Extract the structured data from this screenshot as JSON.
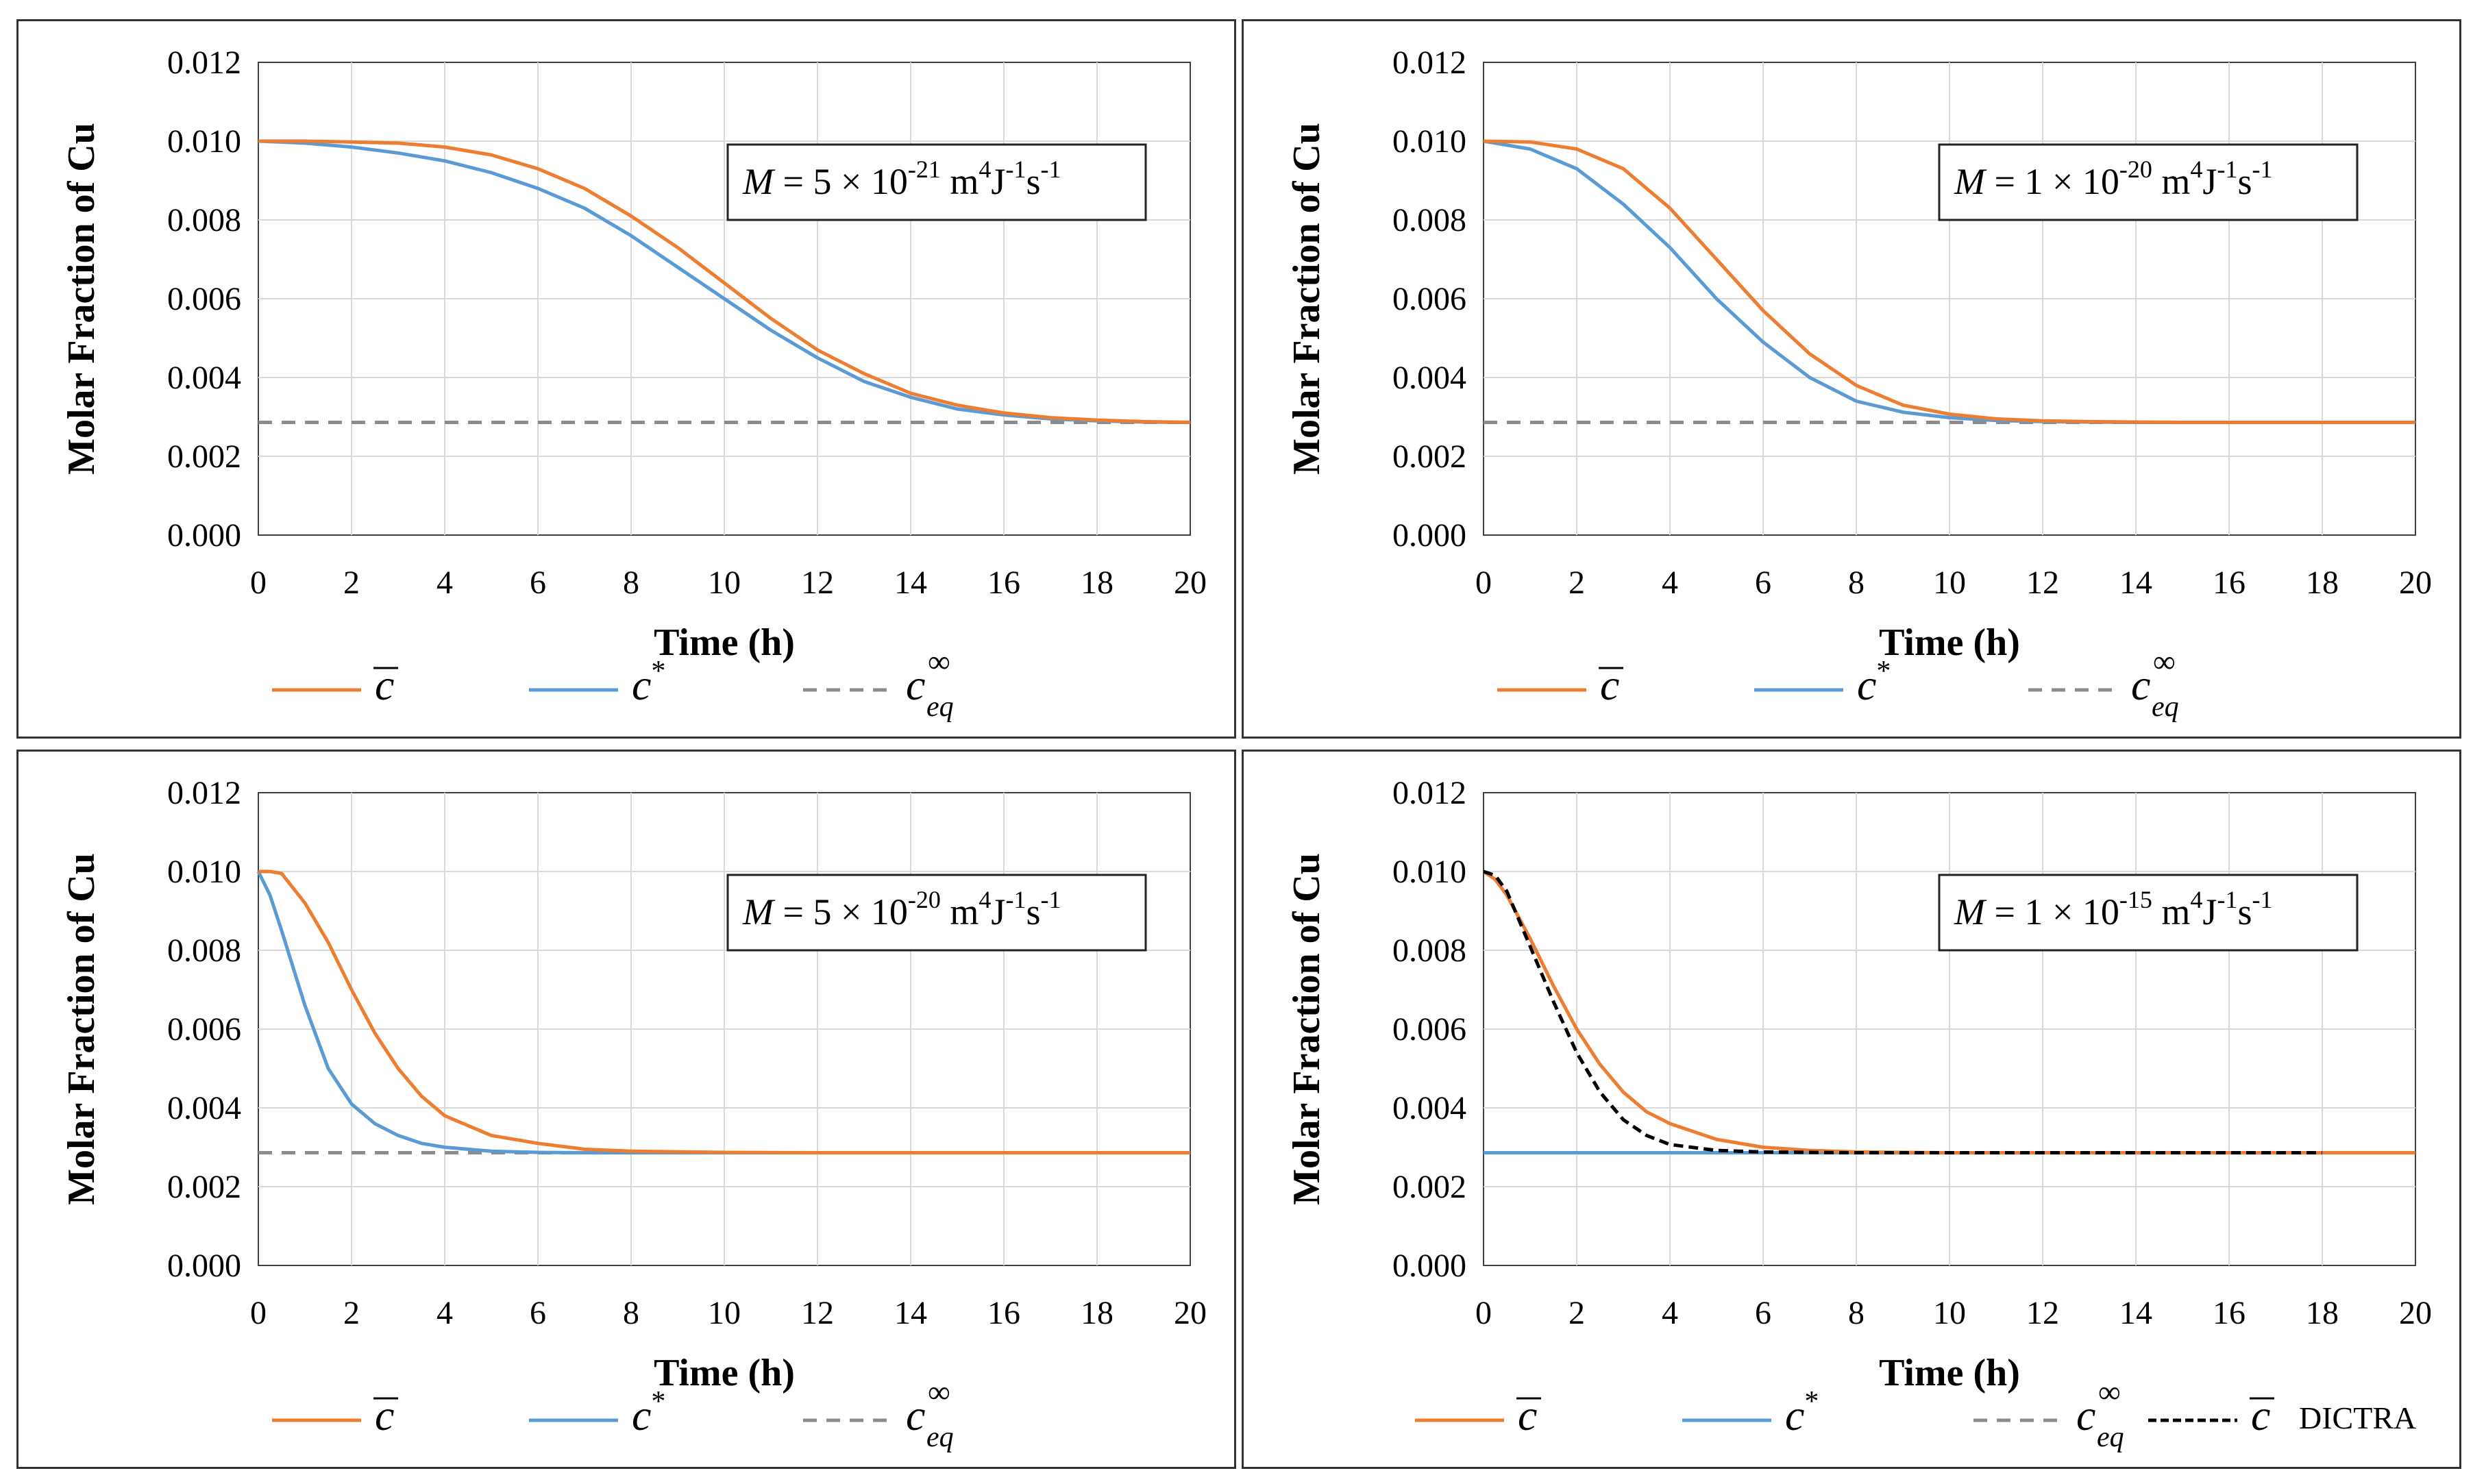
{
  "figure": {
    "colors": {
      "c_bar": "#ED7D31",
      "c_star": "#5B9BD5",
      "c_eq": "#8C8C8C",
      "dictra": "#000000",
      "grid": "#D9D9D9",
      "frame": "#333333"
    }
  },
  "legend_labels": {
    "c_bar": "c",
    "c_star": "c",
    "c_star_sup": "*",
    "c_eq": "c",
    "c_eq_sub": "eq",
    "c_eq_sup": "∞",
    "dictra": "c",
    "dictra_suffix": "DICTRA"
  },
  "chart_data": [
    {
      "type": "line",
      "xlabel": "Time (h)",
      "ylabel": "Molar Fraction of Cu",
      "xlim": [
        0,
        20
      ],
      "ylim": [
        0,
        0.012
      ],
      "xticks": [
        "0",
        "2",
        "4",
        "6",
        "8",
        "10",
        "12",
        "14",
        "16",
        "18",
        "20"
      ],
      "yticks": [
        "0.000",
        "0.002",
        "0.004",
        "0.006",
        "0.008",
        "0.010",
        "0.012"
      ],
      "grid": true,
      "annotation": {
        "prefix": "M",
        "text": " = 5 × 10",
        "exp": "-21",
        "unit": " m",
        "u1": "4",
        "u2": "J",
        "u3": "-1",
        "u4": "s",
        "u5": "-1"
      },
      "x": [
        0,
        1,
        2,
        3,
        4,
        5,
        6,
        7,
        8,
        9,
        10,
        11,
        12,
        13,
        14,
        15,
        16,
        17,
        18,
        19,
        20
      ],
      "series": [
        {
          "key": "c_bar",
          "values": [
            0.01,
            0.01,
            0.00998,
            0.00995,
            0.00985,
            0.00965,
            0.0093,
            0.0088,
            0.0081,
            0.0073,
            0.0064,
            0.0055,
            0.0047,
            0.0041,
            0.0036,
            0.0033,
            0.0031,
            0.00298,
            0.00292,
            0.00288,
            0.00286
          ]
        },
        {
          "key": "c_star",
          "values": [
            0.01,
            0.00995,
            0.00985,
            0.0097,
            0.0095,
            0.0092,
            0.0088,
            0.0083,
            0.0076,
            0.0068,
            0.006,
            0.0052,
            0.0045,
            0.0039,
            0.0035,
            0.0032,
            0.00305,
            0.00295,
            0.0029,
            0.00287,
            0.00286
          ]
        },
        {
          "key": "c_eq",
          "dashed": true,
          "values": [
            0.00286,
            0.00286,
            0.00286,
            0.00286,
            0.00286,
            0.00286,
            0.00286,
            0.00286,
            0.00286,
            0.00286,
            0.00286,
            0.00286,
            0.00286,
            0.00286,
            0.00286,
            0.00286,
            0.00286,
            0.00286,
            0.00286,
            0.00286,
            0.00286
          ]
        }
      ]
    },
    {
      "type": "line",
      "xlabel": "Time (h)",
      "ylabel": "Molar Fraction of Cu",
      "xlim": [
        0,
        20
      ],
      "ylim": [
        0,
        0.012
      ],
      "xticks": [
        "0",
        "2",
        "4",
        "6",
        "8",
        "10",
        "12",
        "14",
        "16",
        "18",
        "20"
      ],
      "yticks": [
        "0.000",
        "0.002",
        "0.004",
        "0.006",
        "0.008",
        "0.010",
        "0.012"
      ],
      "grid": true,
      "annotation": {
        "prefix": "M",
        "text": " = 1 × 10",
        "exp": "-20",
        "unit": " m",
        "u1": "4",
        "u2": "J",
        "u3": "-1",
        "u4": "s",
        "u5": "-1"
      },
      "x": [
        0,
        1,
        2,
        3,
        4,
        5,
        6,
        7,
        8,
        9,
        10,
        11,
        12,
        13,
        14,
        15,
        16,
        17,
        18,
        19,
        20
      ],
      "series": [
        {
          "key": "c_bar",
          "values": [
            0.01,
            0.00998,
            0.0098,
            0.0093,
            0.0083,
            0.007,
            0.0057,
            0.0046,
            0.0038,
            0.0033,
            0.00307,
            0.00295,
            0.0029,
            0.00288,
            0.00287,
            0.00286,
            0.00286,
            0.00286,
            0.00286,
            0.00286,
            0.00286
          ]
        },
        {
          "key": "c_star",
          "values": [
            0.01,
            0.0098,
            0.0093,
            0.0084,
            0.0073,
            0.006,
            0.0049,
            0.004,
            0.0034,
            0.00312,
            0.00298,
            0.00291,
            0.00288,
            0.00287,
            0.00286,
            0.00286,
            0.00286,
            0.00286,
            0.00286,
            0.00286,
            0.00286
          ]
        },
        {
          "key": "c_eq",
          "dashed": true,
          "values": [
            0.00286,
            0.00286,
            0.00286,
            0.00286,
            0.00286,
            0.00286,
            0.00286,
            0.00286,
            0.00286,
            0.00286,
            0.00286,
            0.00286,
            0.00286,
            0.00286,
            0.00286,
            0.00286,
            0.00286,
            0.00286,
            0.00286,
            0.00286,
            0.00286
          ]
        }
      ]
    },
    {
      "type": "line",
      "xlabel": "Time (h)",
      "ylabel": "Molar Fraction of Cu",
      "xlim": [
        0,
        20
      ],
      "ylim": [
        0,
        0.012
      ],
      "xticks": [
        "0",
        "2",
        "4",
        "6",
        "8",
        "10",
        "12",
        "14",
        "16",
        "18",
        "20"
      ],
      "yticks": [
        "0.000",
        "0.002",
        "0.004",
        "0.006",
        "0.008",
        "0.010",
        "0.012"
      ],
      "grid": true,
      "annotation": {
        "prefix": "M",
        "text": " = 5 × 10",
        "exp": "-20",
        "unit": " m",
        "u1": "4",
        "u2": "J",
        "u3": "-1",
        "u4": "s",
        "u5": "-1"
      },
      "x": [
        0,
        0.25,
        0.5,
        1,
        1.5,
        2,
        2.5,
        3,
        3.5,
        4,
        5,
        6,
        7,
        8,
        10,
        12,
        14,
        16,
        18,
        20
      ],
      "series": [
        {
          "key": "c_bar",
          "values": [
            0.01,
            0.01,
            0.00995,
            0.0092,
            0.0082,
            0.007,
            0.0059,
            0.005,
            0.0043,
            0.0038,
            0.0033,
            0.0031,
            0.00295,
            0.0029,
            0.00287,
            0.00286,
            0.00286,
            0.00286,
            0.00286,
            0.00286
          ]
        },
        {
          "key": "c_star",
          "values": [
            0.01,
            0.0094,
            0.0085,
            0.0066,
            0.005,
            0.0041,
            0.0036,
            0.0033,
            0.0031,
            0.003,
            0.0029,
            0.00287,
            0.00286,
            0.00286,
            0.00286,
            0.00286,
            0.00286,
            0.00286,
            0.00286,
            0.00286
          ]
        },
        {
          "key": "c_eq",
          "dashed": true,
          "values": [
            0.00286,
            0.00286,
            0.00286,
            0.00286,
            0.00286,
            0.00286,
            0.00286,
            0.00286,
            0.00286,
            0.00286,
            0.00286,
            0.00286,
            0.00286,
            0.00286,
            0.00286,
            0.00286,
            0.00286,
            0.00286,
            0.00286,
            0.00286
          ]
        }
      ]
    },
    {
      "type": "line",
      "xlabel": "Time (h)",
      "ylabel": "Molar Fraction of Cu",
      "xlim": [
        0,
        20
      ],
      "ylim": [
        0,
        0.012
      ],
      "xticks": [
        "0",
        "2",
        "4",
        "6",
        "8",
        "10",
        "12",
        "14",
        "16",
        "18",
        "20"
      ],
      "yticks": [
        "0.000",
        "0.002",
        "0.004",
        "0.006",
        "0.008",
        "0.010",
        "0.012"
      ],
      "grid": true,
      "annotation": {
        "prefix": "M",
        "text": " = 1 × 10",
        "exp": "-15",
        "unit": " m",
        "u1": "4",
        "u2": "J",
        "u3": "-1",
        "u4": "s",
        "u5": "-1"
      },
      "x": [
        0,
        0.25,
        0.5,
        1,
        1.5,
        2,
        2.5,
        3,
        3.5,
        4,
        5,
        6,
        7,
        8,
        10,
        12,
        14,
        16,
        18,
        20
      ],
      "series": [
        {
          "key": "c_bar",
          "values": [
            0.01,
            0.0098,
            0.0094,
            0.0083,
            0.0071,
            0.006,
            0.0051,
            0.0044,
            0.0039,
            0.0036,
            0.0032,
            0.003,
            0.00292,
            0.00288,
            0.00286,
            0.00286,
            0.00286,
            0.00286,
            0.00286,
            0.00286
          ]
        },
        {
          "key": "c_star",
          "values": [
            0.00286,
            0.00286,
            0.00286,
            0.00286,
            0.00286,
            0.00286,
            0.00286,
            0.00286,
            0.00286,
            0.00286,
            0.00286,
            0.00286,
            0.00286,
            0.00286,
            0.00286,
            0.00286,
            0.00286,
            0.00286,
            0.00286,
            0.00286
          ]
        },
        {
          "key": "c_eq",
          "dashed": true,
          "values": [
            0.00286,
            0.00286,
            0.00286,
            0.00286,
            0.00286,
            0.00286,
            0.00286,
            0.00286,
            0.00286,
            0.00286,
            0.00286,
            0.00286,
            0.00286,
            0.00286,
            0.00286,
            0.00286,
            0.00286,
            0.00286,
            0.00286,
            0.00286
          ]
        },
        {
          "key": "dictra",
          "dashed": true,
          "xmax": 18,
          "values": [
            0.01,
            0.0099,
            0.0095,
            0.0081,
            0.0067,
            0.0054,
            0.0044,
            0.0037,
            0.0033,
            0.00307,
            0.00292,
            0.00288,
            0.00287,
            0.00286,
            0.00286,
            0.00286,
            0.00286,
            0.00286,
            0.00286,
            0.00286
          ]
        }
      ]
    }
  ]
}
